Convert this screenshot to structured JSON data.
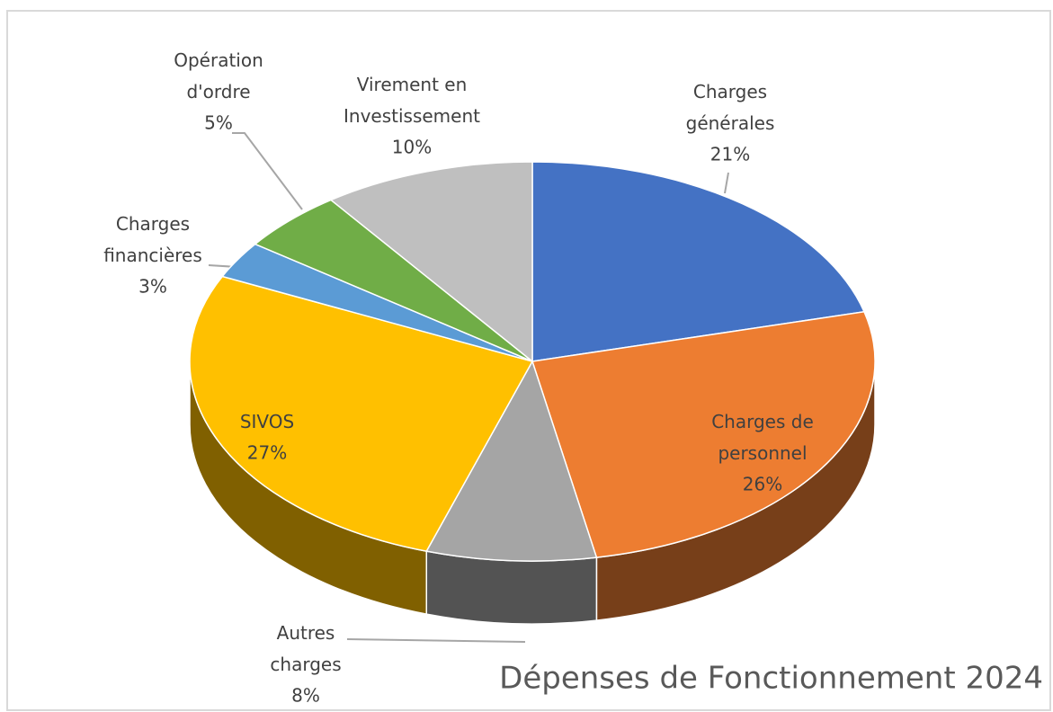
{
  "chart_data": {
    "type": "pie",
    "title": "Dépenses de Fonctionnement 2024",
    "categories": [
      "Charges générales",
      "Charges de personnel",
      "Autres charges",
      "SIVOS",
      "Charges financières",
      "Opération d'ordre",
      "Virement en Investissement"
    ],
    "values": [
      21,
      26,
      8,
      27,
      3,
      5,
      10
    ],
    "value_labels": [
      "21%",
      "26%",
      "8%",
      "27%",
      "3%",
      "5%",
      "10%"
    ],
    "colors": [
      "#4472c4",
      "#ed7d31",
      "#a5a5a5",
      "#ffc000",
      "#5b9bd5",
      "#70ad47",
      "#bfbfbf"
    ]
  }
}
